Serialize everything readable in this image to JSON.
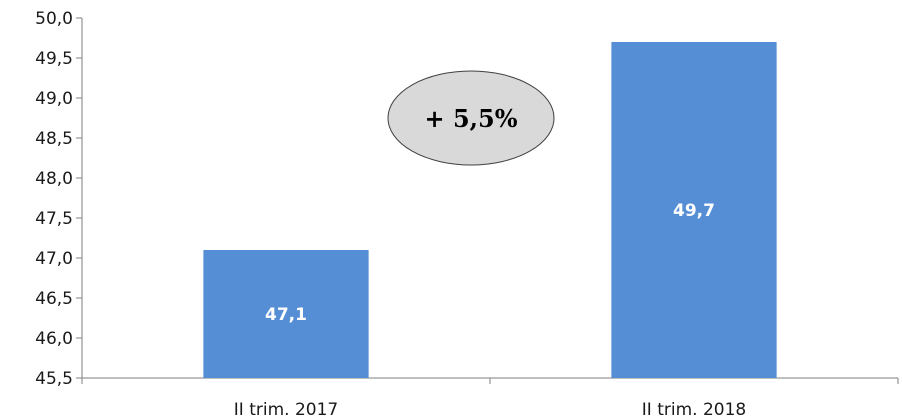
{
  "chart_data": {
    "type": "bar",
    "categories": [
      "II trim. 2017",
      "II trim. 2018"
    ],
    "values": [
      47.1,
      49.7
    ],
    "data_labels": [
      "47,1",
      "49,7"
    ],
    "ylim": [
      45.5,
      50.0
    ],
    "yticks": [
      45.5,
      46.0,
      46.5,
      47.0,
      47.5,
      48.0,
      48.5,
      49.0,
      49.5,
      50.0
    ],
    "ytick_labels": [
      "45,5",
      "46,0",
      "46,5",
      "47,0",
      "47,5",
      "48,0",
      "48,5",
      "49,0",
      "49,5",
      "50,0"
    ],
    "grid": false,
    "legend": "none",
    "bar_color": "#558ed5",
    "annotation": {
      "text": "+ 5,5%",
      "fill": "#d9d9d9",
      "stroke": "#404040"
    }
  }
}
